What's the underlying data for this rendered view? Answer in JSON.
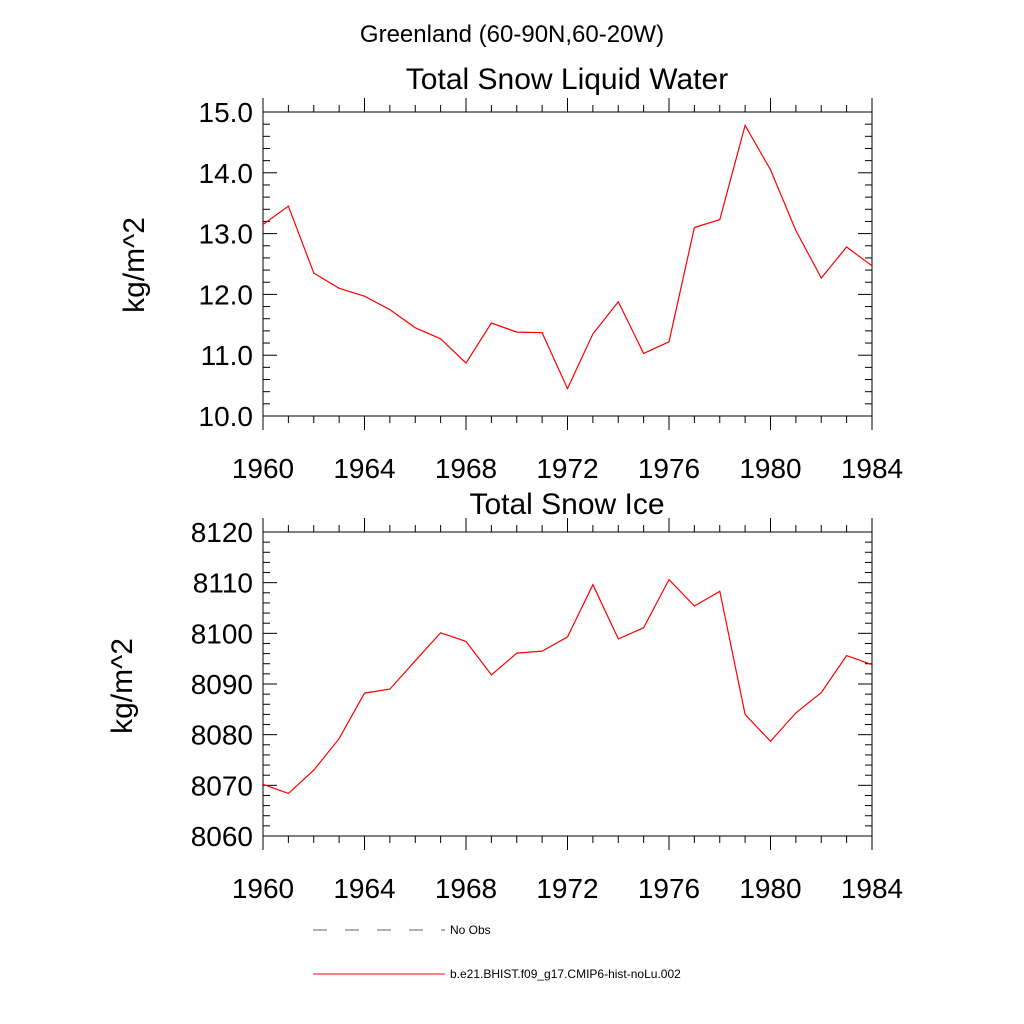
{
  "figure": {
    "title": "Greenland (60-90N,60-20W)"
  },
  "chart_data": [
    {
      "type": "line",
      "title": "Total Snow Liquid Water",
      "xlabel": "",
      "ylabel": "kg/m^2",
      "xlim": [
        1960,
        1984
      ],
      "ylim": [
        10.0,
        15.0
      ],
      "x_ticks": [
        "1960",
        "1964",
        "1968",
        "1972",
        "1976",
        "1980",
        "1984"
      ],
      "y_ticks": [
        "10.0",
        "11.0",
        "12.0",
        "13.0",
        "14.0",
        "15.0"
      ],
      "x": [
        1960,
        1961,
        1962,
        1963,
        1964,
        1965,
        1966,
        1967,
        1968,
        1969,
        1970,
        1971,
        1972,
        1973,
        1974,
        1975,
        1976,
        1977,
        1978,
        1979,
        1980,
        1981,
        1982,
        1983,
        1984
      ],
      "series": [
        {
          "name": "b.e21.BHIST.f09_g17.CMIP6-hist-noLu.002",
          "color": "#ff0000",
          "values": [
            13.15,
            13.45,
            12.35,
            12.1,
            11.97,
            11.75,
            11.45,
            11.27,
            10.87,
            11.53,
            11.38,
            11.37,
            10.45,
            11.35,
            11.88,
            11.03,
            11.22,
            13.1,
            13.23,
            14.78,
            14.05,
            13.05,
            12.27,
            12.78,
            12.47
          ]
        }
      ]
    },
    {
      "type": "line",
      "title": "Total Snow Ice",
      "xlabel": "",
      "ylabel": "kg/m^2",
      "xlim": [
        1960,
        1984
      ],
      "ylim": [
        8060,
        8120
      ],
      "x_ticks": [
        "1960",
        "1964",
        "1968",
        "1972",
        "1976",
        "1980",
        "1984"
      ],
      "y_ticks": [
        "8060",
        "8070",
        "8080",
        "8090",
        "8100",
        "8110",
        "8120"
      ],
      "x": [
        1960,
        1961,
        1962,
        1963,
        1964,
        1965,
        1966,
        1967,
        1968,
        1969,
        1970,
        1971,
        1972,
        1973,
        1974,
        1975,
        1976,
        1977,
        1978,
        1979,
        1980,
        1981,
        1982,
        1983,
        1984
      ],
      "series": [
        {
          "name": "b.e21.BHIST.f09_g17.CMIP6-hist-noLu.002",
          "color": "#ff0000",
          "values": [
            8070.2,
            8068.4,
            8073.0,
            8079.2,
            8088.2,
            8089.0,
            8094.6,
            8100.1,
            8098.4,
            8091.8,
            8096.1,
            8096.5,
            8099.3,
            8109.6,
            8098.9,
            8101.1,
            8110.6,
            8105.4,
            8108.3,
            8084.0,
            8078.7,
            8084.3,
            8088.3,
            8095.6,
            8093.8
          ]
        }
      ]
    }
  ],
  "legend": [
    {
      "label": "No Obs",
      "style": "dashed",
      "color": "#5a5a7a"
    },
    {
      "label": "b.e21.BHIST.f09_g17.CMIP6-hist-noLu.002",
      "style": "solid",
      "color": "#ff0000"
    }
  ]
}
